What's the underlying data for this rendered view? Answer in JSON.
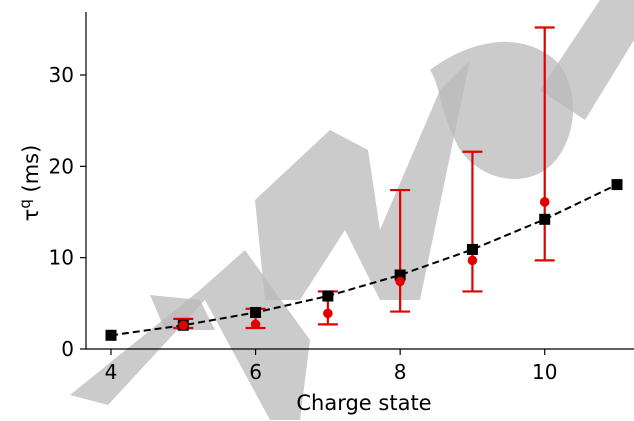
{
  "chart_data": {
    "type": "scatter",
    "title": "",
    "xlabel": "Charge state",
    "ylabel": "τ^q (ms)",
    "xlim": [
      3.7,
      11.3
    ],
    "ylim": [
      -0.5,
      37
    ],
    "xticks": [
      4,
      6,
      8,
      10
    ],
    "yticks": [
      0,
      10,
      20,
      30
    ],
    "grid": false,
    "legend": "none",
    "series": [
      {
        "style": "black squares with dashed line",
        "color": "#000000",
        "x": [
          4,
          5,
          6,
          7,
          8,
          9,
          10,
          11
        ],
        "y": [
          1.5,
          2.6,
          4.0,
          5.8,
          8.1,
          10.9,
          14.2,
          18.0
        ]
      },
      {
        "style": "red circles with error bars",
        "color": "#e00000",
        "x": [
          5,
          6,
          7,
          8,
          9,
          10
        ],
        "y": [
          2.6,
          2.7,
          3.9,
          7.4,
          9.7,
          16.1
        ],
        "err_low": [
          2.3,
          2.3,
          2.7,
          4.1,
          6.3,
          9.7
        ],
        "err_high": [
          3.3,
          4.4,
          6.3,
          17.4,
          21.6,
          35.2
        ]
      }
    ],
    "watermark": "Manu"
  }
}
